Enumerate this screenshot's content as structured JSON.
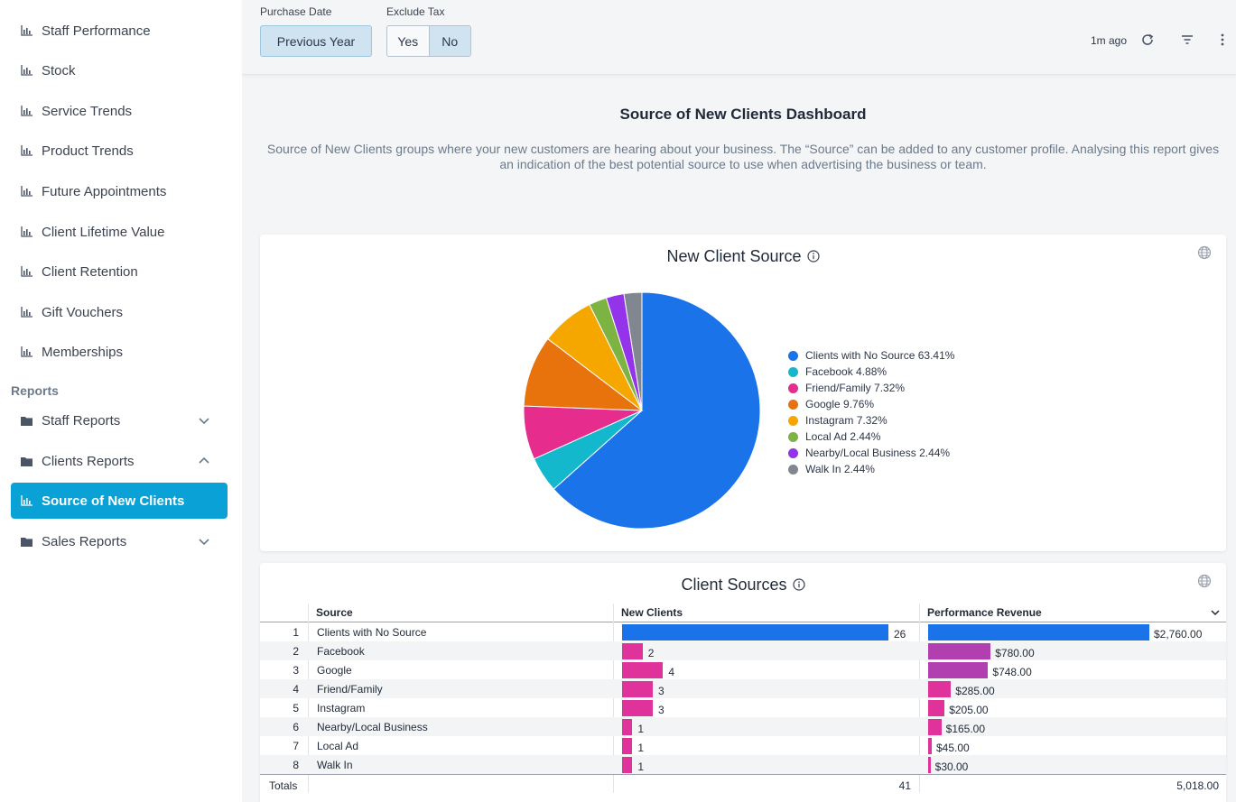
{
  "sidebar": {
    "items": [
      {
        "label": "Staff Performance"
      },
      {
        "label": "Stock"
      },
      {
        "label": "Service Trends"
      },
      {
        "label": "Product Trends"
      },
      {
        "label": "Future Appointments"
      },
      {
        "label": "Client Lifetime Value"
      },
      {
        "label": "Client Retention"
      },
      {
        "label": "Gift Vouchers"
      },
      {
        "label": "Memberships"
      }
    ],
    "section_label": "Reports",
    "reports": [
      {
        "label": "Staff Reports",
        "expanded": false
      },
      {
        "label": "Clients Reports",
        "expanded": true
      },
      {
        "label": "Source of New Clients",
        "active": true
      },
      {
        "label": "Sales Reports",
        "expanded": false
      }
    ]
  },
  "filters": {
    "purchase_date_label": "Purchase Date",
    "purchase_date_value": "Previous Year",
    "exclude_tax_label": "Exclude Tax",
    "exclude_tax_options": [
      "Yes",
      "No"
    ],
    "exclude_tax_selected": "No"
  },
  "toolbar": {
    "last_updated": "1m ago"
  },
  "header": {
    "title": "Source of New Clients Dashboard",
    "description": "Source of New Clients groups where your new customers are hearing about your business. The “Source” can be added to any customer profile. Analysing this report gives an indication of the best potential source to use when advertising the business or team."
  },
  "pie_card": {
    "title": "New Client Source"
  },
  "table_card": {
    "title": "Client Sources",
    "columns": [
      "Source",
      "New Clients",
      "Performance Revenue"
    ],
    "rows": [
      {
        "n": "1",
        "source": "Clients with No Source",
        "clients": "26",
        "revenue": "$2,760.00"
      },
      {
        "n": "2",
        "source": "Facebook",
        "clients": "2",
        "revenue": "$780.00"
      },
      {
        "n": "3",
        "source": "Google",
        "clients": "4",
        "revenue": "$748.00"
      },
      {
        "n": "4",
        "source": "Friend/Family",
        "clients": "3",
        "revenue": "$285.00"
      },
      {
        "n": "5",
        "source": "Instagram",
        "clients": "3",
        "revenue": "$205.00"
      },
      {
        "n": "6",
        "source": "Nearby/Local Business",
        "clients": "1",
        "revenue": "$165.00"
      },
      {
        "n": "7",
        "source": "Local Ad",
        "clients": "1",
        "revenue": "$45.00"
      },
      {
        "n": "8",
        "source": "Walk In",
        "clients": "1",
        "revenue": "$30.00"
      }
    ],
    "totals": {
      "label": "Totals",
      "clients": "41",
      "revenue": "5,018.00"
    }
  },
  "colors": {
    "accent": "#0aa1d6",
    "bar_primary": "#1a73e8",
    "bar_clients": "#e0329b",
    "bar_revenue": "#b23fb0"
  },
  "chart_data": [
    {
      "type": "pie",
      "title": "New Client Source",
      "slices": [
        {
          "label": "Clients with No Source",
          "percent": 63.41,
          "legend": "Clients with No Source 63.41%",
          "color": "#1a73e8"
        },
        {
          "label": "Facebook",
          "percent": 4.88,
          "legend": "Facebook 4.88%",
          "color": "#14b8cc"
        },
        {
          "label": "Friend/Family",
          "percent": 7.32,
          "legend": "Friend/Family 7.32%",
          "color": "#e62c8d"
        },
        {
          "label": "Google",
          "percent": 9.76,
          "legend": "Google 9.76%",
          "color": "#e8720c"
        },
        {
          "label": "Instagram",
          "percent": 7.32,
          "legend": "Instagram 7.32%",
          "color": "#f5a700"
        },
        {
          "label": "Local Ad",
          "percent": 2.44,
          "legend": "Local Ad 2.44%",
          "color": "#7cb342"
        },
        {
          "label": "Nearby/Local Business",
          "percent": 2.44,
          "legend": "Nearby/Local Business 2.44%",
          "color": "#9333ea"
        },
        {
          "label": "Walk In",
          "percent": 2.44,
          "legend": "Walk In 2.44%",
          "color": "#808790"
        }
      ],
      "legend_position": "right"
    },
    {
      "type": "table",
      "title": "Client Sources",
      "categories": [
        "Clients with No Source",
        "Facebook",
        "Google",
        "Friend/Family",
        "Instagram",
        "Nearby/Local Business",
        "Local Ad",
        "Walk In"
      ],
      "series": [
        {
          "name": "New Clients",
          "values": [
            26,
            2,
            4,
            3,
            3,
            1,
            1,
            1
          ]
        },
        {
          "name": "Performance Revenue",
          "values": [
            2760,
            780,
            748,
            285,
            205,
            165,
            45,
            30
          ]
        }
      ]
    }
  ]
}
